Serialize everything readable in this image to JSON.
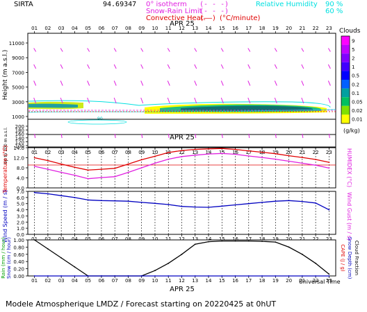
{
  "station": "SIRTA",
  "station_code": "94.69347",
  "date_label": "APR 25",
  "footer": "Modele Atmospherique LMDZ / Forecast starting on 20220425 at 0hUT",
  "universal_time": "Universal Time",
  "legend_top": {
    "isotherm": "0° isotherm",
    "snow_rain": "Snow-Rain Limit",
    "convective": "Convective Heat.",
    "convective_unit": "(°C/minute)",
    "isotherm_marker": "(- - -)",
    "snow_rain_marker": "(- - -)",
    "convective_marker": "(——)",
    "rh_label": "Relative Humidity",
    "rh_90": "90 %",
    "rh_60": "60 %",
    "colors": {
      "magenta": "#e020e0",
      "red": "#e00000",
      "cyan": "#00e0e0"
    }
  },
  "hours": [
    "01",
    "02",
    "03",
    "04",
    "05",
    "06",
    "07",
    "08",
    "09",
    "10",
    "11",
    "12",
    "13",
    "14",
    "15",
    "16",
    "17",
    "18",
    "19",
    "20",
    "21",
    "22",
    "23"
  ],
  "chart_data": [
    {
      "type": "heatmap",
      "ylabel": "Height (m a.s.l.)",
      "ylabel_low": "Up to 200 m a.s.l.",
      "yticks_high": [
        "11000",
        "9000",
        "7000",
        "5000",
        "3000",
        "1000"
      ],
      "yticks_low": [
        "200",
        "180",
        "160",
        "140",
        "120",
        "100"
      ],
      "colorbar_title": "Clouds",
      "colorbar_unit": "(g/kg)",
      "colorbar_labels": [
        "9",
        "5",
        "2",
        "1",
        "0.5",
        "0.2",
        "0.1",
        "0.05",
        "0.02",
        "0.01"
      ],
      "colorbar_colors": [
        "#ff00ff",
        "#c000ff",
        "#8000ff",
        "#4000ff",
        "#0000ff",
        "#0060ff",
        "#00a0a0",
        "#00c060",
        "#80e000",
        "#ffff00"
      ],
      "rh_contour_label": "90"
    },
    {
      "type": "line",
      "ylabel": "Temperature (°C)",
      "y2label": "HUMIDEX (°C)",
      "ylim": [
        0,
        14
      ],
      "yticks": [
        "14.0",
        "12.0",
        "8.0",
        "4.0",
        "0.0"
      ],
      "series": [
        {
          "color": "#e00000",
          "values": [
            10.5,
            9.5,
            8.3,
            7.2,
            6.2,
            6.5,
            6.8,
            8.3,
            9.8,
            11.0,
            12.3,
            13.0,
            13.4,
            13.6,
            13.7,
            13.4,
            12.9,
            12.4,
            11.9,
            11.2,
            10.6,
            9.9,
            8.9
          ]
        },
        {
          "color": "#e020e0",
          "values": [
            7.5,
            6.5,
            5.4,
            4.4,
            3.2,
            3.6,
            3.9,
            5.4,
            7.0,
            8.6,
            10.0,
            10.9,
            11.4,
            11.8,
            12.0,
            11.7,
            11.1,
            10.6,
            10.0,
            9.3,
            8.6,
            7.9,
            6.9
          ]
        }
      ]
    },
    {
      "type": "line",
      "ylabel": "Wind Speed (m / s)",
      "y2label": "Wind Gust (m / s)",
      "ylim": [
        0,
        7
      ],
      "yticks": [
        "7.0",
        "6.0",
        "5.0",
        "4.0",
        "3.0",
        "2.0",
        "1.0",
        "0.0"
      ],
      "series": [
        {
          "color": "#0000c0",
          "values": [
            6.8,
            6.6,
            6.3,
            6.0,
            5.6,
            5.5,
            5.45,
            5.4,
            5.2,
            5.05,
            4.85,
            4.55,
            4.45,
            4.4,
            4.6,
            4.8,
            5.0,
            5.2,
            5.4,
            5.5,
            5.35,
            5.1,
            4.0
          ]
        }
      ]
    },
    {
      "type": "line",
      "ylabel": "Rain (mm / hour)",
      "ylabel2": "Snow (cm / hour)",
      "y2label": "CAPE (J / g)",
      "y2label2": "Snow Depth (cm)",
      "y2label3": "Cloud Fraction",
      "ylim": [
        0,
        1
      ],
      "yticks": [
        "1.00",
        "0.80",
        "0.60",
        "0.40",
        "0.20",
        "0.00"
      ],
      "series": [
        {
          "color": "#000000",
          "values": [
            1.0,
            0.75,
            0.5,
            0.25,
            0.0,
            0.0,
            0.0,
            0.0,
            0.0,
            0.15,
            0.35,
            0.6,
            0.88,
            0.95,
            0.97,
            0.97,
            0.97,
            0.96,
            0.94,
            0.8,
            0.6,
            0.35,
            0.05
          ]
        },
        {
          "color": "#0000c0",
          "values": [
            0,
            0,
            0,
            0,
            0,
            0,
            0,
            0,
            0,
            0,
            0,
            0,
            0,
            0,
            0,
            0,
            0,
            0,
            0,
            0,
            0,
            0,
            0
          ]
        }
      ]
    }
  ]
}
